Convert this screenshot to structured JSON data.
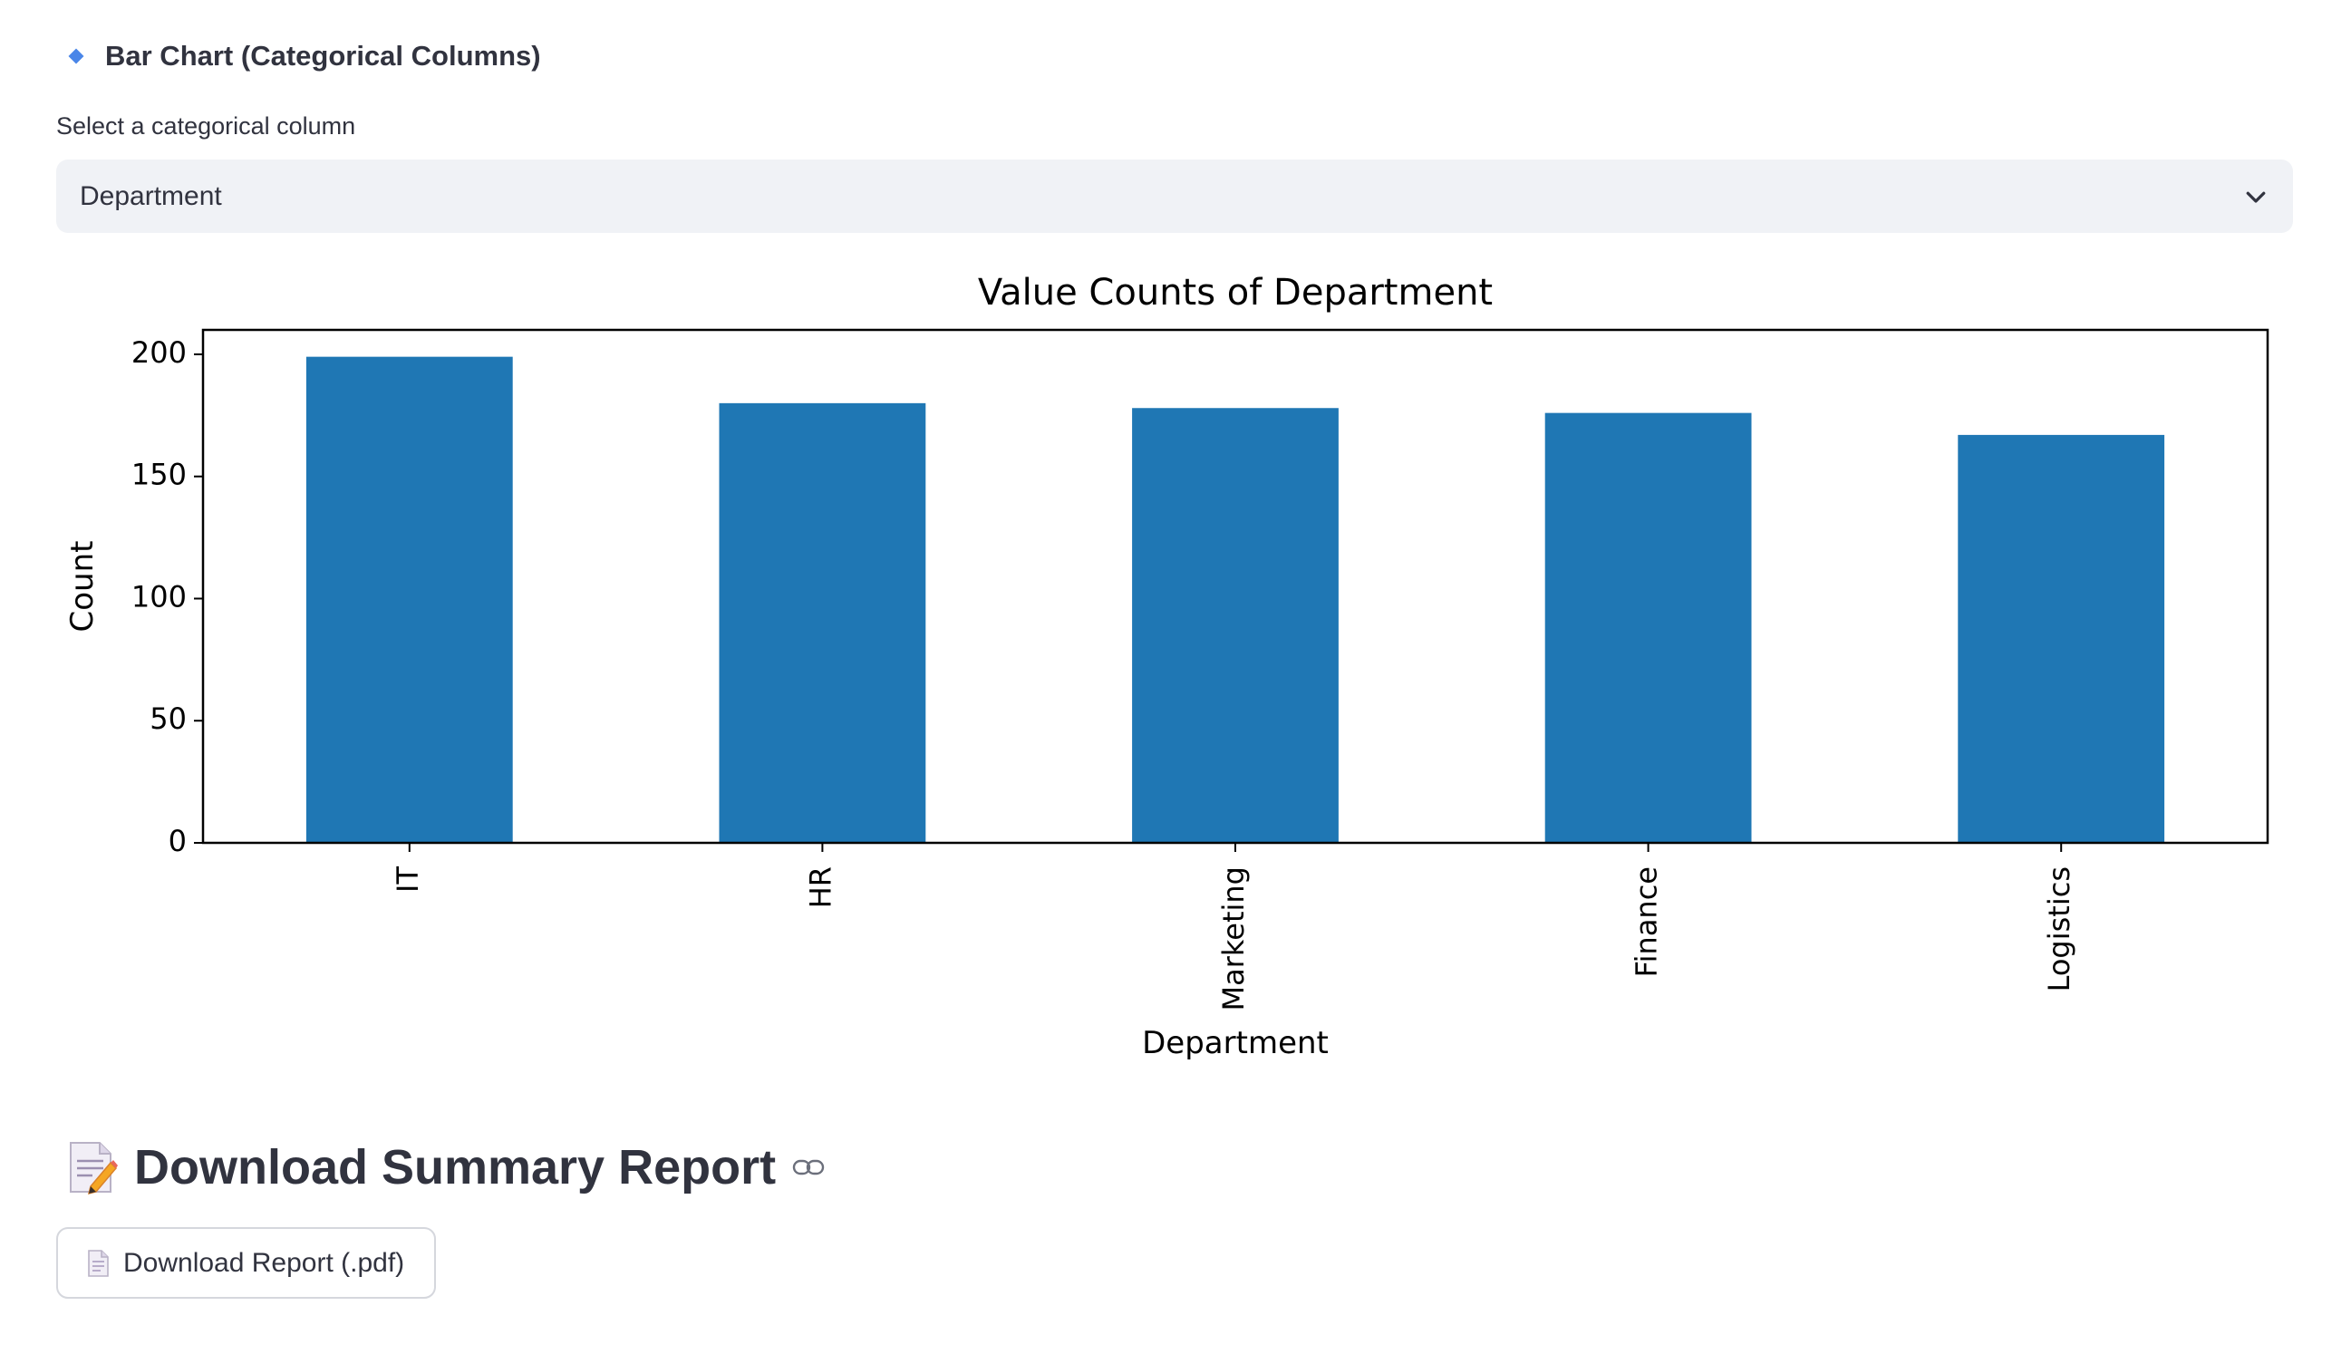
{
  "section": {
    "icon": "small-blue-diamond-icon",
    "title": "Bar Chart (Categorical Columns)"
  },
  "select": {
    "label": "Select a categorical column",
    "value": "Department",
    "icon": "chevron-down-icon"
  },
  "chart_data": {
    "type": "bar",
    "title": "Value Counts of Department",
    "xlabel": "Department",
    "ylabel": "Count",
    "categories": [
      "IT",
      "HR",
      "Marketing",
      "Finance",
      "Logistics"
    ],
    "values": [
      199,
      180,
      178,
      176,
      167
    ],
    "ylim": [
      0,
      210
    ],
    "yticks": [
      0,
      50,
      100,
      150,
      200
    ],
    "bar_color": "#1f77b4",
    "grid": false,
    "legend": "none",
    "x_tick_rotation": "vertical"
  },
  "report": {
    "icon": "memo-icon",
    "title": "Download Summary Report",
    "anchor_icon": "link-icon"
  },
  "download": {
    "icon": "page-icon",
    "label": "Download Report (.pdf)"
  },
  "colors": {
    "text": "#31333f",
    "select_bg": "#f0f2f6",
    "accent_diamond": "#4a86e8",
    "bar": "#1f77b4"
  }
}
